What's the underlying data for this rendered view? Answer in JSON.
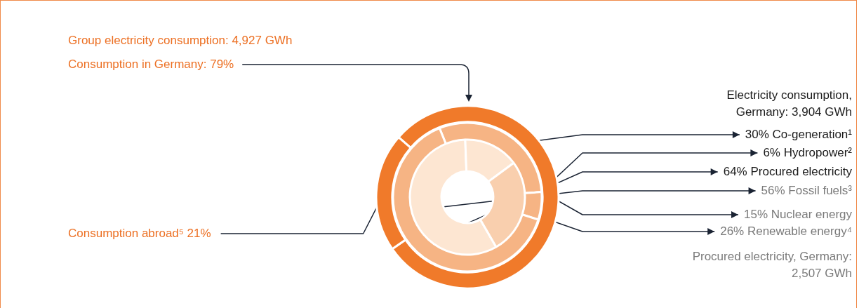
{
  "chart_data": [
    {
      "type": "donut",
      "title": "Group electricity consumption: 4,927 GWh",
      "categories": [
        "Consumption in Germany: 79%",
        "Consumption abroad⁵ 21%"
      ],
      "values": [
        79,
        21
      ],
      "colors": [
        "#f07a2a",
        "#f07a2a"
      ]
    },
    {
      "type": "donut",
      "title": "Electricity consumption, Germany: 3,904 GWh",
      "categories": [
        "30% Co-generation¹",
        "6% Hydropower²",
        "64% Procured electricity"
      ],
      "values": [
        30,
        6,
        64
      ],
      "colors": [
        "#f6b484",
        "#f6b484",
        "#f6b484"
      ]
    },
    {
      "type": "donut",
      "title": "Procured electricity, Germany: 2,507 GWh",
      "categories": [
        "56% Fossil fuels³",
        "15% Nuclear energy",
        "26% Renewable energy⁴"
      ],
      "values": [
        56,
        15,
        26
      ],
      "colors": [
        "#fde6d2",
        "#fde6d2",
        "#f9cfae"
      ]
    }
  ]
}
